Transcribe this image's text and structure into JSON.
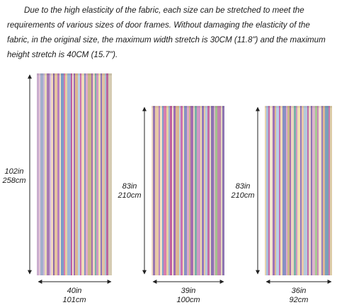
{
  "description": "Due to the high elasticity of the fabric, each size can be stretched to meet the requirements of various sizes of door frames. Without damaging the elasticity of the fabric, in the original size, the maximum width stretch is 30CM (11.8\") and the maximum height stretch is 40CM (15.7\").",
  "panels": [
    {
      "height_in": "102in",
      "height_cm": "258cm",
      "width_in": "40in",
      "width_cm": "101cm"
    },
    {
      "height_in": "83in",
      "height_cm": "210cm",
      "width_in": "39in",
      "width_cm": "100cm"
    },
    {
      "height_in": "83in",
      "height_cm": "210cm",
      "width_in": "36in",
      "width_cm": "92cm"
    }
  ],
  "colors": {
    "stripes": [
      "#c4a3c8",
      "#e0c0d4",
      "#9aa8c8",
      "#c8b0d6",
      "#e8d8b4",
      "#a676b0",
      "#d4b8e0",
      "#f0d8c0",
      "#8c66a8",
      "#e6c4a0",
      "#b880c0",
      "#f2e2c4",
      "#7c9cc8",
      "#d87cae",
      "#e4d0a4",
      "#a0b4d8",
      "#c060a0",
      "#f4e4cc",
      "#9c6cb4",
      "#dcb890",
      "#b8d0e8",
      "#cc70b0",
      "#f0dcb8",
      "#8890c4",
      "#e0a8c8",
      "#c8b888",
      "#a46cb0",
      "#ecd4c0",
      "#7ab0a8",
      "#d098c4",
      "#f0e0b0",
      "#9478bc",
      "#e8c8a8",
      "#b4c8dc",
      "#c46ca8",
      "#e6dcc0",
      "#8e74b6",
      "#dcb4cc",
      "#a8c890",
      "#cc88b8",
      "#f2e6cc",
      "#9a80c0",
      "#e4bc98",
      "#80a8c4",
      "#d47cb4",
      "#eedcb4",
      "#a47cc0",
      "#c8d4a0",
      "#b46aa8",
      "#f0e2c8",
      "#7ec090",
      "#9c84bc"
    ]
  }
}
